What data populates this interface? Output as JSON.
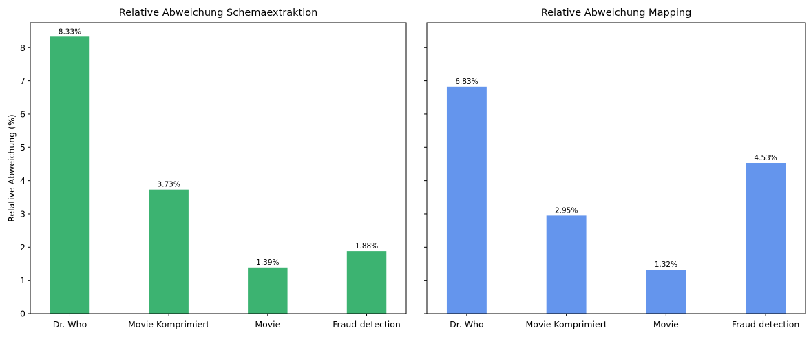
{
  "chart_data": [
    {
      "type": "bar",
      "title": "Relative Abweichung Schemaextraktion",
      "ylabel": "Relative Abweichung (%)",
      "xlabel": "",
      "categories": [
        "Dr. Who",
        "Movie Komprimiert",
        "Movie",
        "Fraud-detection"
      ],
      "values": [
        8.33,
        3.73,
        1.39,
        1.88
      ],
      "data_labels": [
        "8.33%",
        "3.73%",
        "1.39%",
        "1.88%"
      ],
      "ylim": [
        0,
        8.75
      ],
      "yticks": [
        0,
        1,
        2,
        3,
        4,
        5,
        6,
        7,
        8
      ],
      "color": "#3cb371",
      "grid": false,
      "show_ytick_labels": true
    },
    {
      "type": "bar",
      "title": "Relative Abweichung Mapping",
      "ylabel": "",
      "xlabel": "",
      "categories": [
        "Dr. Who",
        "Movie Komprimiert",
        "Movie",
        "Fraud-detection"
      ],
      "values": [
        6.83,
        2.95,
        1.32,
        4.53
      ],
      "data_labels": [
        "6.83%",
        "2.95%",
        "1.32%",
        "4.53%"
      ],
      "ylim": [
        0,
        8.75
      ],
      "yticks": [
        0,
        1,
        2,
        3,
        4,
        5,
        6,
        7,
        8
      ],
      "color": "#6495ed",
      "grid": false,
      "show_ytick_labels": false
    }
  ]
}
